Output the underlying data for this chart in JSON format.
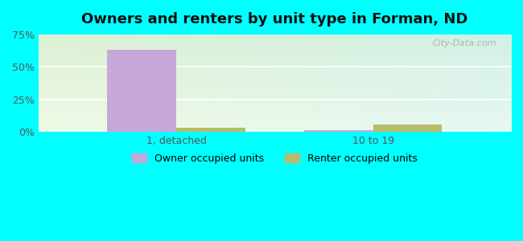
{
  "title": "Owners and renters by unit type in Forman, ND",
  "categories": [
    "1, detached",
    "10 to 19"
  ],
  "owner_values": [
    63,
    1.5
  ],
  "renter_values": [
    3.5,
    6
  ],
  "owner_color": "#c8a8d8",
  "renter_color": "#b8bc6a",
  "bar_width": 0.35,
  "ylim": [
    0,
    75
  ],
  "yticks": [
    0,
    25,
    50,
    75
  ],
  "ytick_labels": [
    "0%",
    "25%",
    "50%",
    "75%"
  ],
  "outer_background": "#00ffff",
  "watermark": "City-Data.com",
  "legend_labels": [
    "Owner occupied units",
    "Renter occupied units"
  ],
  "grad_topleft": [
    220,
    240,
    210
  ],
  "grad_topright": [
    210,
    240,
    230
  ],
  "grad_bottomleft": [
    240,
    250,
    230
  ],
  "grad_bottomright": [
    230,
    248,
    242
  ]
}
